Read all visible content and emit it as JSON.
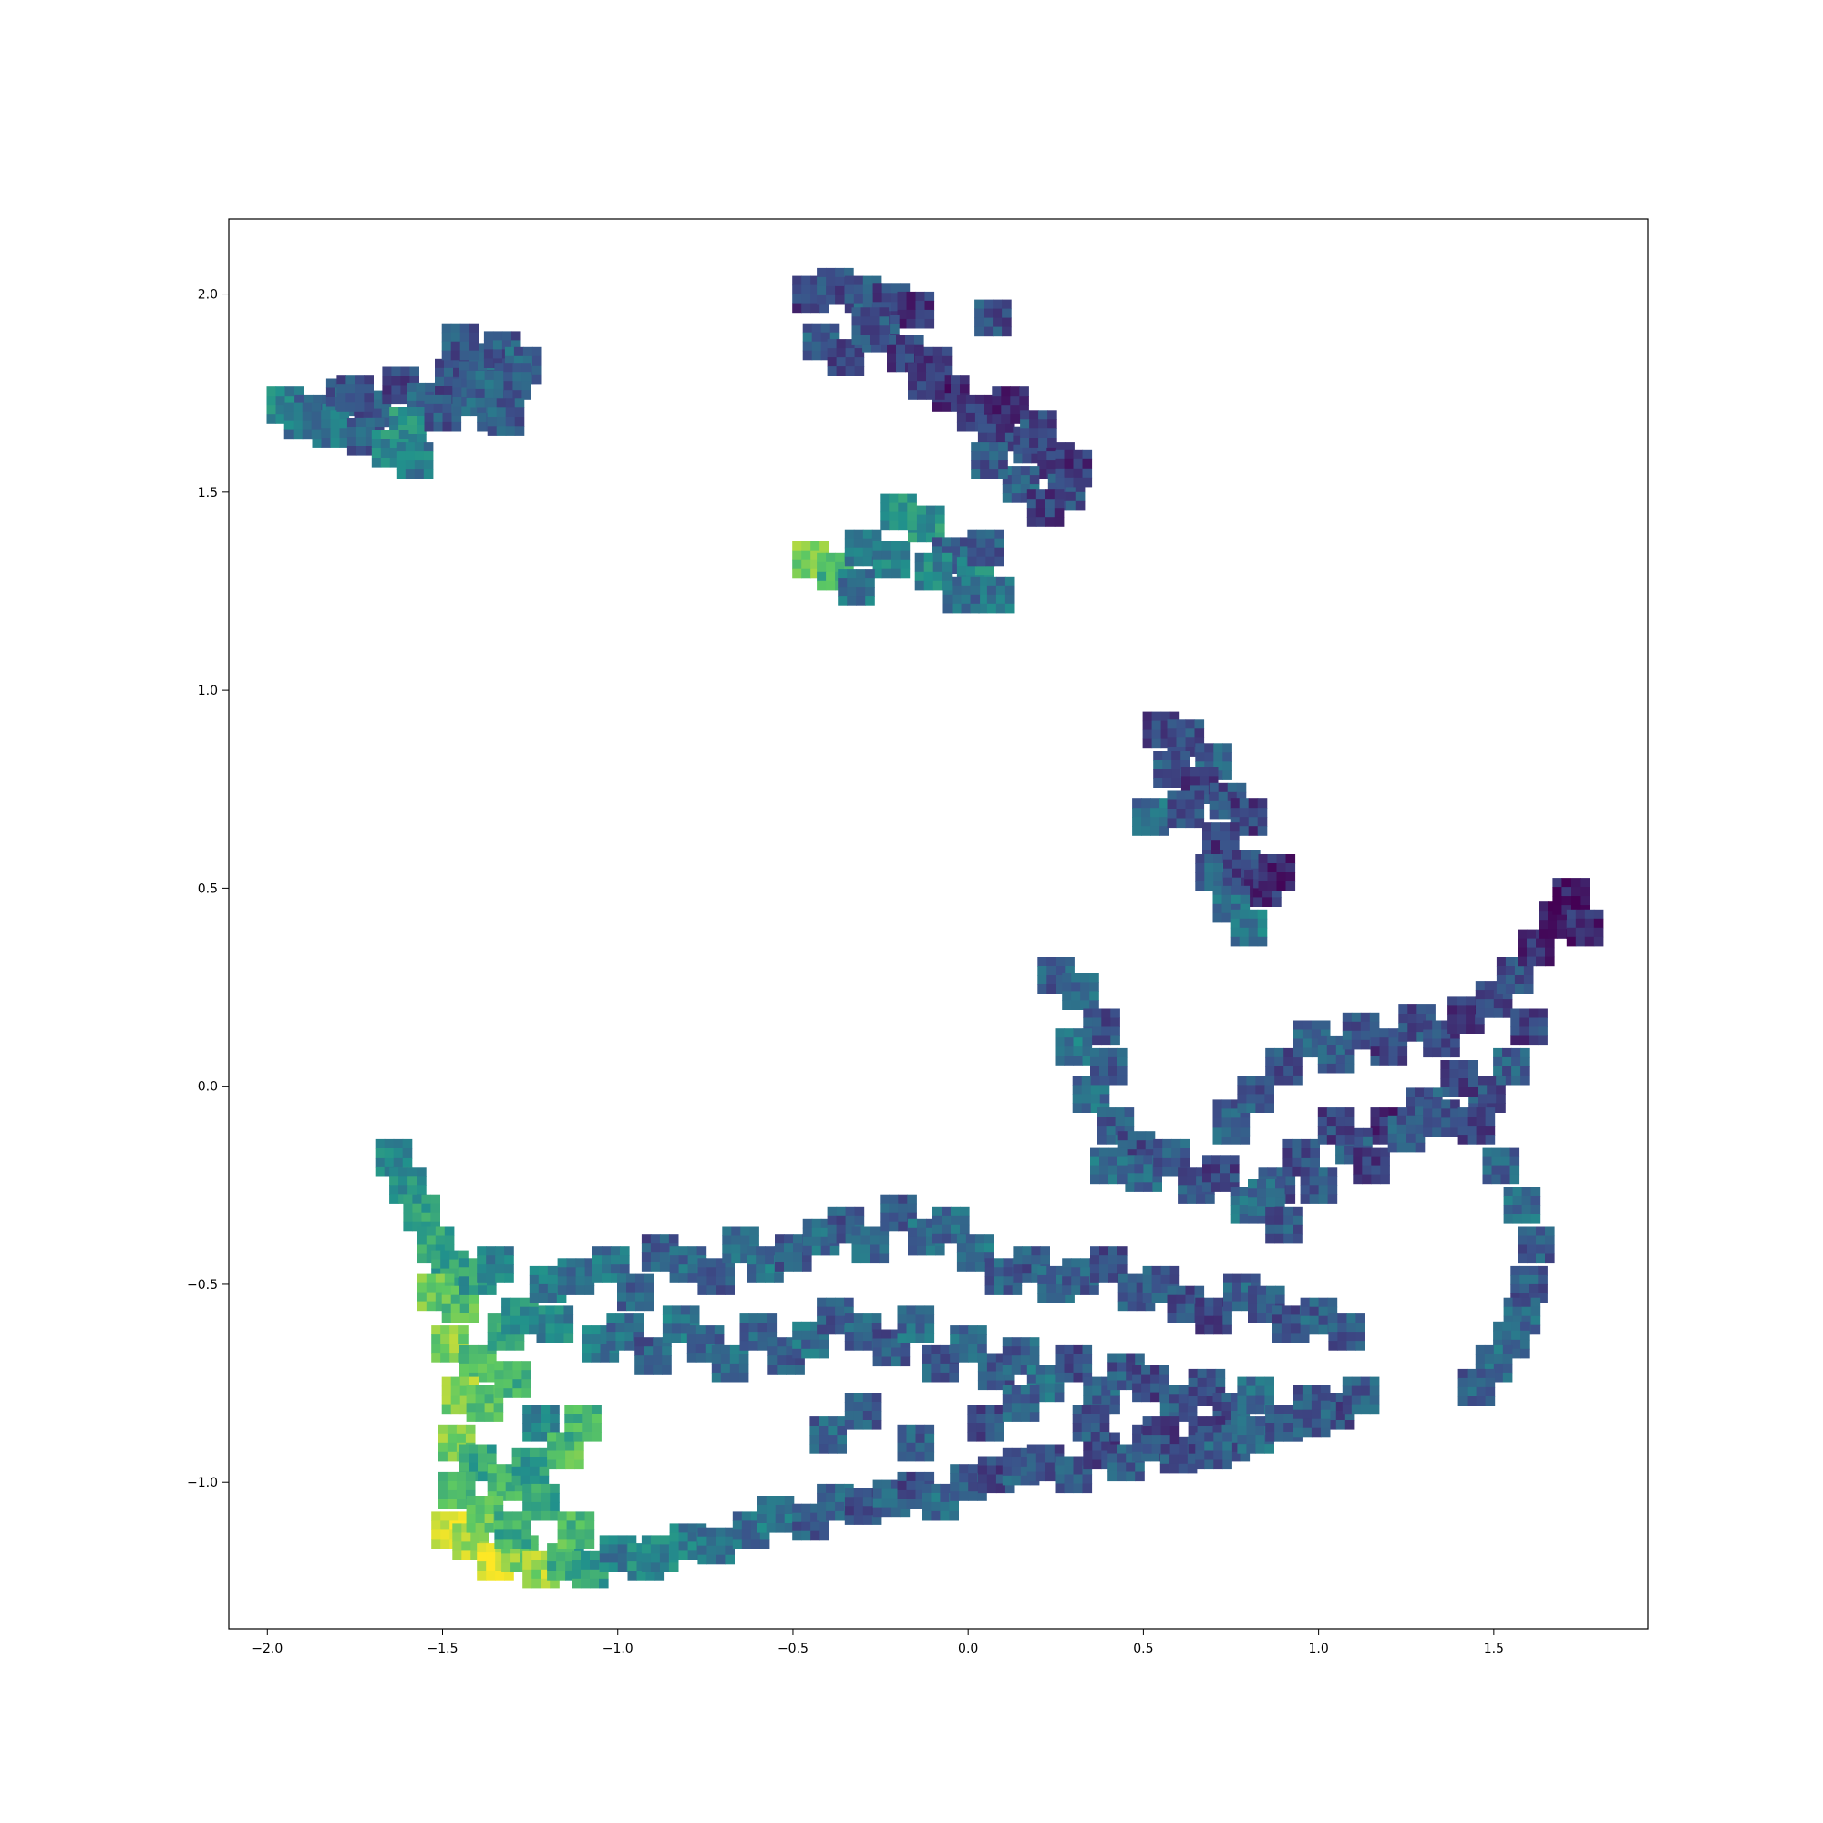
{
  "chart_data": {
    "type": "scatter",
    "title": "",
    "xlabel": "",
    "ylabel": "",
    "xlim": [
      -2.11,
      1.94
    ],
    "ylim": [
      -1.37,
      2.19
    ],
    "xticks": [
      -2.0,
      -1.5,
      -1.0,
      -0.5,
      0.0,
      0.5,
      1.0,
      1.5
    ],
    "xtick_labels": [
      "−2.0",
      "−1.5",
      "−1.0",
      "−0.5",
      "0.0",
      "0.5",
      "1.0",
      "1.5"
    ],
    "yticks": [
      -1.0,
      -0.5,
      0.0,
      0.5,
      1.0,
      1.5,
      2.0
    ],
    "ytick_labels": [
      "−1.0",
      "−0.5",
      "0.0",
      "0.5",
      "1.0",
      "1.5",
      "2.0"
    ],
    "grid": false,
    "legend": "none",
    "marker": "image-thumbnail tiles",
    "colormap": [
      "#440154",
      "#3b528b",
      "#21918c",
      "#5ec962",
      "#fde725"
    ],
    "clusters": [
      {
        "x": [
          -1.95,
          -1.87,
          -1.78,
          -1.7,
          -1.62,
          -1.55,
          -1.47,
          -1.4,
          -1.33,
          -1.27,
          -1.82,
          -1.72,
          -1.6,
          -1.5,
          -1.42,
          -1.35,
          -1.3,
          -1.65,
          -1.58,
          -1.45,
          -1.38,
          -1.32,
          -1.9,
          -1.75
        ],
        "y": [
          1.72,
          1.7,
          1.74,
          1.71,
          1.77,
          1.73,
          1.79,
          1.83,
          1.86,
          1.82,
          1.66,
          1.64,
          1.67,
          1.7,
          1.74,
          1.7,
          1.78,
          1.61,
          1.58,
          1.88,
          1.76,
          1.69,
          1.68,
          1.75
        ],
        "c": [
          0.45,
          0.35,
          0.3,
          0.28,
          0.22,
          0.3,
          0.25,
          0.3,
          0.28,
          0.32,
          0.38,
          0.3,
          0.5,
          0.27,
          0.3,
          0.34,
          0.28,
          0.48,
          0.42,
          0.27,
          0.33,
          0.3,
          0.4,
          0.25
        ]
      },
      {
        "x": [
          -0.45,
          -0.38,
          -0.3,
          -0.22,
          -0.15,
          -0.42,
          -0.35,
          -0.25,
          -0.18,
          -0.1,
          -0.05,
          0.02,
          0.08,
          0.12,
          0.18,
          0.25,
          0.28,
          0.15,
          0.22,
          0.3,
          0.2,
          0.06,
          -0.12,
          -0.28
        ],
        "y": [
          2.0,
          2.02,
          2.0,
          1.98,
          1.96,
          1.88,
          1.84,
          1.9,
          1.85,
          1.82,
          1.75,
          1.7,
          1.65,
          1.72,
          1.62,
          1.58,
          1.5,
          1.52,
          1.46,
          1.56,
          1.66,
          1.58,
          1.78,
          1.92
        ],
        "c": [
          0.2,
          0.25,
          0.28,
          0.22,
          0.15,
          0.3,
          0.24,
          0.26,
          0.2,
          0.18,
          0.12,
          0.15,
          0.2,
          0.1,
          0.22,
          0.18,
          0.25,
          0.3,
          0.2,
          0.15,
          0.24,
          0.28,
          0.2,
          0.25
        ]
      },
      {
        "x": [
          0.07
        ],
        "y": [
          1.94
        ],
        "c": [
          0.25
        ]
      },
      {
        "x": [
          -0.45,
          -0.38,
          -0.3,
          -0.22,
          -0.12,
          -0.05,
          0.02,
          0.08,
          -0.02,
          -0.2,
          -0.32,
          0.05,
          -0.1
        ],
        "y": [
          1.33,
          1.3,
          1.36,
          1.33,
          1.42,
          1.34,
          1.29,
          1.24,
          1.24,
          1.45,
          1.26,
          1.36,
          1.3
        ],
        "c": [
          0.8,
          0.65,
          0.4,
          0.45,
          0.5,
          0.3,
          0.45,
          0.4,
          0.35,
          0.5,
          0.38,
          0.28,
          0.45
        ]
      },
      {
        "x": [
          0.55,
          0.62,
          0.7,
          0.58,
          0.66,
          0.74,
          0.8,
          0.52,
          0.62,
          0.72,
          0.7,
          0.78,
          0.84,
          0.75,
          0.88,
          0.8
        ],
        "y": [
          0.9,
          0.88,
          0.82,
          0.8,
          0.76,
          0.72,
          0.68,
          0.68,
          0.7,
          0.62,
          0.54,
          0.55,
          0.5,
          0.46,
          0.54,
          0.4
        ],
        "c": [
          0.22,
          0.25,
          0.3,
          0.28,
          0.2,
          0.25,
          0.2,
          0.35,
          0.28,
          0.18,
          0.3,
          0.22,
          0.15,
          0.35,
          0.12,
          0.4
        ]
      },
      {
        "x": [
          0.25,
          0.32,
          0.38,
          0.3,
          0.4,
          0.35,
          0.42,
          0.48,
          0.5,
          0.4,
          0.58,
          0.65,
          0.72,
          0.8,
          0.75,
          0.88
        ],
        "y": [
          0.28,
          0.24,
          0.15,
          0.1,
          0.05,
          -0.02,
          -0.1,
          -0.16,
          -0.22,
          -0.2,
          -0.18,
          -0.25,
          -0.22,
          -0.3,
          -0.1,
          -0.25
        ],
        "c": [
          0.3,
          0.35,
          0.25,
          0.4,
          0.28,
          0.35,
          0.3,
          0.25,
          0.32,
          0.38,
          0.3,
          0.28,
          0.22,
          0.35,
          0.3,
          0.25
        ]
      },
      {
        "x": [
          0.75,
          0.82,
          0.9,
          0.98,
          1.05,
          1.12,
          1.2,
          1.28,
          1.35,
          1.42,
          1.5,
          1.56,
          1.62,
          1.68,
          1.72,
          1.76,
          1.6,
          1.55,
          1.48,
          1.4,
          1.3,
          1.2,
          1.1,
          0.95,
          0.85,
          1.0,
          1.15,
          1.25,
          1.35,
          1.45,
          1.52,
          1.58,
          1.62,
          1.6,
          1.58,
          1.55,
          1.5,
          1.45,
          0.9,
          1.05
        ],
        "y": [
          -0.08,
          -0.02,
          0.05,
          0.12,
          0.08,
          0.14,
          0.1,
          0.16,
          0.12,
          0.18,
          0.22,
          0.28,
          0.35,
          0.42,
          0.48,
          0.4,
          0.15,
          0.05,
          -0.02,
          0.02,
          -0.05,
          -0.1,
          -0.15,
          -0.18,
          -0.28,
          -0.25,
          -0.2,
          -0.12,
          -0.08,
          -0.1,
          -0.2,
          -0.3,
          -0.4,
          -0.5,
          -0.58,
          -0.64,
          -0.7,
          -0.76,
          -0.35,
          -0.1
        ],
        "c": [
          0.3,
          0.28,
          0.25,
          0.32,
          0.3,
          0.28,
          0.2,
          0.25,
          0.22,
          0.15,
          0.2,
          0.25,
          0.12,
          0.1,
          0.08,
          0.12,
          0.2,
          0.3,
          0.25,
          0.22,
          0.28,
          0.15,
          0.3,
          0.25,
          0.35,
          0.28,
          0.2,
          0.3,
          0.25,
          0.22,
          0.3,
          0.35,
          0.3,
          0.28,
          0.32,
          0.3,
          0.35,
          0.3,
          0.28,
          0.22
        ]
      },
      {
        "x": [
          -1.64,
          -1.6,
          -1.56,
          -1.52,
          -1.48,
          -1.52,
          -1.45,
          -1.4,
          -1.35,
          -1.48,
          -1.4,
          -1.32,
          -1.45,
          -1.38,
          -1.3,
          -1.22,
          -1.46,
          -1.4,
          -1.32,
          -1.25,
          -1.15,
          -1.48,
          -1.42,
          -1.35,
          -1.28,
          -1.22,
          -1.15,
          -1.08,
          -1.0,
          -0.92,
          -1.46,
          -1.38,
          -1.3,
          -1.22,
          -1.1,
          -1.18,
          -1.28,
          -1.12
        ],
        "y": [
          -0.18,
          -0.25,
          -0.32,
          -0.4,
          -0.46,
          -0.52,
          -0.55,
          -0.48,
          -0.45,
          -0.65,
          -0.7,
          -0.62,
          -0.78,
          -0.8,
          -0.74,
          -0.85,
          -0.9,
          -0.95,
          -1.0,
          -0.96,
          -0.92,
          -1.12,
          -1.15,
          -1.2,
          -1.18,
          -1.22,
          -1.2,
          -1.22,
          -1.18,
          -1.2,
          -1.02,
          -1.08,
          -1.12,
          -1.05,
          -0.85,
          -0.6,
          -0.58,
          -1.12
        ],
        "c": [
          0.45,
          0.5,
          0.55,
          0.6,
          0.55,
          0.75,
          0.7,
          0.55,
          0.45,
          0.8,
          0.72,
          0.55,
          0.82,
          0.7,
          0.65,
          0.45,
          0.78,
          0.6,
          0.65,
          0.55,
          0.7,
          0.95,
          0.88,
          0.92,
          0.8,
          0.85,
          0.6,
          0.55,
          0.42,
          0.48,
          0.7,
          0.75,
          0.62,
          0.58,
          0.65,
          0.45,
          0.5,
          0.68
        ]
      },
      {
        "x": [
          -1.2,
          -1.12,
          -1.02,
          -0.95,
          -0.88,
          -0.8,
          -0.72,
          -0.65,
          -0.58,
          -0.5,
          -0.42,
          -0.35,
          -0.28,
          -0.2,
          -0.12,
          -0.05,
          0.02,
          0.1,
          0.18,
          0.25,
          0.32,
          0.4,
          0.48,
          0.55,
          0.62,
          0.7,
          0.78,
          0.85,
          0.92,
          1.0,
          1.08,
          -1.05,
          -0.98,
          -0.9,
          -0.82,
          -0.75,
          -0.68,
          -0.6,
          -0.52,
          -0.45,
          -0.38,
          -0.3,
          -0.22,
          -0.15,
          -0.08,
          0.0,
          0.08,
          0.15,
          0.22,
          0.3,
          0.38,
          0.45,
          0.52,
          0.6,
          0.68,
          0.75,
          0.82,
          0.9,
          0.98,
          1.05,
          1.12
        ],
        "y": [
          -0.5,
          -0.48,
          -0.45,
          -0.52,
          -0.42,
          -0.45,
          -0.48,
          -0.4,
          -0.45,
          -0.42,
          -0.38,
          -0.35,
          -0.4,
          -0.32,
          -0.38,
          -0.35,
          -0.42,
          -0.48,
          -0.45,
          -0.5,
          -0.48,
          -0.45,
          -0.52,
          -0.5,
          -0.55,
          -0.58,
          -0.52,
          -0.55,
          -0.6,
          -0.58,
          -0.62,
          -0.65,
          -0.62,
          -0.68,
          -0.6,
          -0.65,
          -0.7,
          -0.62,
          -0.68,
          -0.64,
          -0.58,
          -0.62,
          -0.66,
          -0.6,
          -0.7,
          -0.65,
          -0.72,
          -0.68,
          -0.75,
          -0.7,
          -0.78,
          -0.72,
          -0.75,
          -0.8,
          -0.76,
          -0.82,
          -0.78,
          -0.85,
          -0.8,
          -0.82,
          -0.78
        ],
        "c": [
          0.4,
          0.35,
          0.38,
          0.32,
          0.28,
          0.35,
          0.3,
          0.33,
          0.38,
          0.3,
          0.35,
          0.28,
          0.32,
          0.3,
          0.35,
          0.33,
          0.38,
          0.3,
          0.28,
          0.35,
          0.3,
          0.25,
          0.3,
          0.28,
          0.25,
          0.22,
          0.3,
          0.28,
          0.25,
          0.3,
          0.28,
          0.4,
          0.35,
          0.3,
          0.38,
          0.33,
          0.35,
          0.3,
          0.28,
          0.35,
          0.3,
          0.32,
          0.28,
          0.35,
          0.3,
          0.33,
          0.28,
          0.3,
          0.35,
          0.25,
          0.3,
          0.28,
          0.22,
          0.3,
          0.25,
          0.28,
          0.35,
          0.3,
          0.28,
          0.25,
          0.3
        ]
      },
      {
        "x": [
          -0.88,
          -0.8,
          -0.72,
          -0.62,
          -0.55,
          -0.45,
          -0.38,
          -0.3,
          -0.22,
          -0.15,
          -0.08,
          0.0,
          0.08,
          0.15,
          0.22,
          0.3,
          0.38,
          0.45,
          0.52,
          0.6,
          0.68,
          0.75,
          0.82,
          0.9,
          0.98,
          -0.4,
          -0.3,
          -0.15,
          0.05,
          0.15,
          0.35,
          0.55,
          0.7
        ],
        "y": [
          -1.18,
          -1.15,
          -1.16,
          -1.12,
          -1.08,
          -1.1,
          -1.05,
          -1.06,
          -1.04,
          -1.02,
          -1.05,
          -1.0,
          -0.98,
          -0.96,
          -0.95,
          -0.98,
          -0.92,
          -0.95,
          -0.9,
          -0.93,
          -0.88,
          -0.9,
          -0.88,
          -0.85,
          -0.84,
          -0.88,
          -0.82,
          -0.9,
          -0.85,
          -0.8,
          -0.85,
          -0.88,
          -0.92
        ],
        "c": [
          0.45,
          0.42,
          0.38,
          0.35,
          0.4,
          0.3,
          0.35,
          0.25,
          0.3,
          0.22,
          0.35,
          0.28,
          0.2,
          0.3,
          0.25,
          0.3,
          0.22,
          0.28,
          0.25,
          0.3,
          0.2,
          0.28,
          0.35,
          0.25,
          0.3,
          0.32,
          0.28,
          0.3,
          0.25,
          0.3,
          0.28,
          0.22,
          0.3
        ]
      }
    ]
  }
}
